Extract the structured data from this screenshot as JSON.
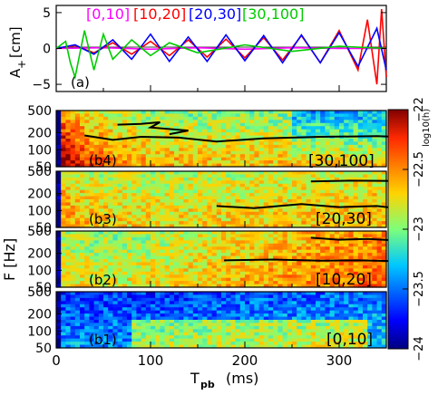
{
  "chart_data": [
    {
      "id": "a",
      "type": "line",
      "panel_label": "(a)",
      "ylabel": "A+ [cm]",
      "ylabel_main": "A",
      "ylabel_sub": "+",
      "ylabel_unit": "[cm]",
      "ylim": [
        -6,
        6
      ],
      "xlim": [
        0,
        350
      ],
      "yticks": [
        -5,
        0,
        5
      ],
      "ytick_labels": [
        "−5",
        "0",
        "5"
      ],
      "xticks": [
        0,
        100,
        200,
        300
      ],
      "legend_placement": "top",
      "series": [
        {
          "name": "[0,10]",
          "color": "#ff00ff",
          "x": [
            0,
            50,
            100,
            150,
            200,
            250,
            300,
            350
          ],
          "y": [
            0,
            0.1,
            -0.1,
            0.1,
            -0.1,
            0.1,
            0,
            0
          ]
        },
        {
          "name": "[10,20]",
          "color": "#ff0000",
          "x": [
            0,
            20,
            40,
            60,
            80,
            100,
            120,
            140,
            160,
            180,
            200,
            220,
            240,
            260,
            280,
            300,
            320,
            330,
            340,
            345,
            350
          ],
          "y": [
            0,
            0.4,
            -0.6,
            0.8,
            -0.8,
            1.0,
            -1.0,
            1.2,
            -1.2,
            1.3,
            -1.3,
            1.5,
            -1.6,
            1.8,
            -2.0,
            2.5,
            -3.0,
            4.0,
            -5.0,
            5.5,
            -4.0
          ]
        },
        {
          "name": "[20,30]",
          "color": "#0000ff",
          "x": [
            0,
            20,
            40,
            60,
            80,
            100,
            120,
            140,
            160,
            180,
            200,
            220,
            240,
            260,
            280,
            300,
            320,
            340,
            350
          ],
          "y": [
            0,
            0.5,
            -0.8,
            1.2,
            -1.5,
            2.0,
            -1.8,
            1.6,
            -1.8,
            1.9,
            -1.7,
            1.8,
            -2.0,
            1.9,
            -2.0,
            2.2,
            -2.5,
            2.8,
            -3.0
          ]
        },
        {
          "name": "[30,100]",
          "color": "#00cc00",
          "x": [
            0,
            10,
            15,
            20,
            30,
            40,
            50,
            60,
            80,
            100,
            120,
            150,
            200,
            250,
            300,
            350
          ],
          "y": [
            0,
            1.0,
            -2.0,
            -4.0,
            2.5,
            -3.0,
            2.0,
            -1.5,
            1.2,
            -1.0,
            0.8,
            -0.6,
            0.5,
            -0.4,
            0.3,
            0
          ]
        }
      ]
    },
    {
      "id": "b",
      "type": "heatmap",
      "ylabel": "F [Hz]",
      "xlabel": "T_pb (ms)",
      "xlabel_main": "T",
      "xlabel_sub": "pb",
      "xlabel_unit": "(ms)",
      "xlim": [
        0,
        350
      ],
      "xticks": [
        0,
        100,
        200,
        300
      ],
      "xtick_labels": [
        "0",
        "100",
        "200",
        "300"
      ],
      "yticks": [
        50,
        100,
        200,
        500
      ],
      "ytick_labels": [
        "50",
        "100",
        "200",
        "500"
      ],
      "yscale": "log",
      "colorbar": {
        "label": "log10(h)",
        "min": -24,
        "max": -22,
        "ticks": [
          -24,
          -23.5,
          -23,
          -22.5,
          -22
        ],
        "tick_labels": [
          "−24",
          "−23.5",
          "−23",
          "−22.5",
          "−22"
        ]
      },
      "panels": [
        {
          "id": "b4",
          "label": "(b4)",
          "band": "[30,100]",
          "base": -23.0,
          "early": 0.9,
          "trend": 0.0,
          "lowboost": 0.6
        },
        {
          "id": "b3",
          "label": "(b3)",
          "band": "[20,30]",
          "base": -22.95,
          "early": 0.35,
          "trend": 0.15,
          "lowboost": 0.3
        },
        {
          "id": "b2",
          "label": "(b2)",
          "band": "[10,20]",
          "base": -23.1,
          "early": 0.3,
          "trend": 0.6,
          "lowboost": 0.25
        },
        {
          "id": "b1",
          "label": "(b1)",
          "band": "[0,10]",
          "base": -23.7,
          "early": 0.1,
          "trend": 0.2,
          "lowboost": 0.4
        }
      ]
    }
  ]
}
